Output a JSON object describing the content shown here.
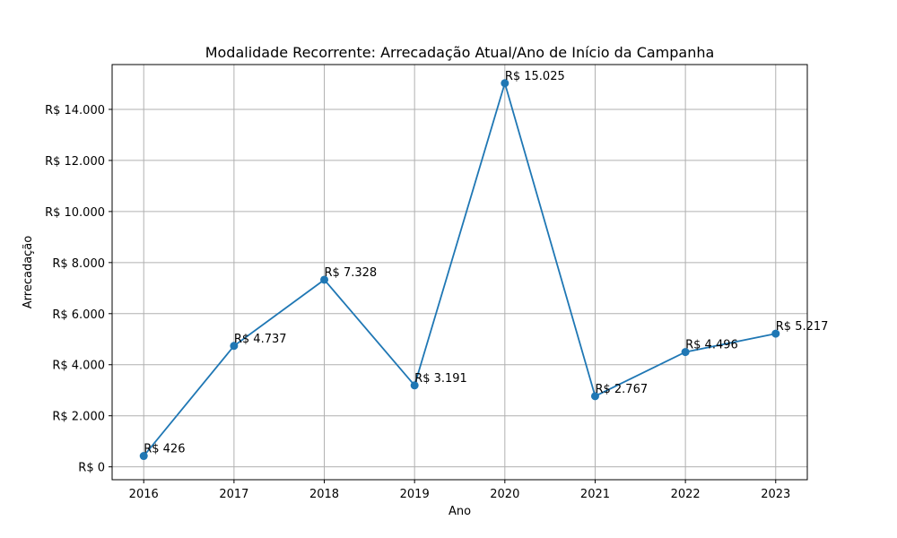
{
  "chart_data": {
    "type": "line",
    "title": "Modalidade Recorrente: Arrecadação Atual/Ano de Início da Campanha",
    "xlabel": "Ano",
    "ylabel": "Arrecadação",
    "x": [
      2016,
      2017,
      2018,
      2019,
      2020,
      2021,
      2022,
      2023
    ],
    "x_tick_labels": [
      "2016",
      "2017",
      "2018",
      "2019",
      "2020",
      "2021",
      "2022",
      "2023"
    ],
    "series": [
      {
        "values": [
          426,
          4737,
          7328,
          3191,
          15025,
          2767,
          4496,
          5217
        ],
        "data_labels": [
          "R$ 426",
          "R$ 4.737",
          "R$ 7.328",
          "R$ 3.191",
          "R$ 15.025",
          "R$ 2.767",
          "R$ 4.496",
          "R$ 5.217"
        ],
        "color": "#1f77b4",
        "marker": "circle"
      }
    ],
    "y_ticks": [
      0,
      2000,
      4000,
      6000,
      8000,
      10000,
      12000,
      14000
    ],
    "y_tick_labels": [
      "R$ 0",
      "R$ 2.000",
      "R$ 4.000",
      "R$ 6.000",
      "R$ 8.000",
      "R$ 10.000",
      "R$ 12.000",
      "R$ 14.000"
    ],
    "xlim": [
      2015.65,
      2023.35
    ],
    "ylim": [
      -504,
      15755
    ],
    "grid": true,
    "legend": "none"
  }
}
